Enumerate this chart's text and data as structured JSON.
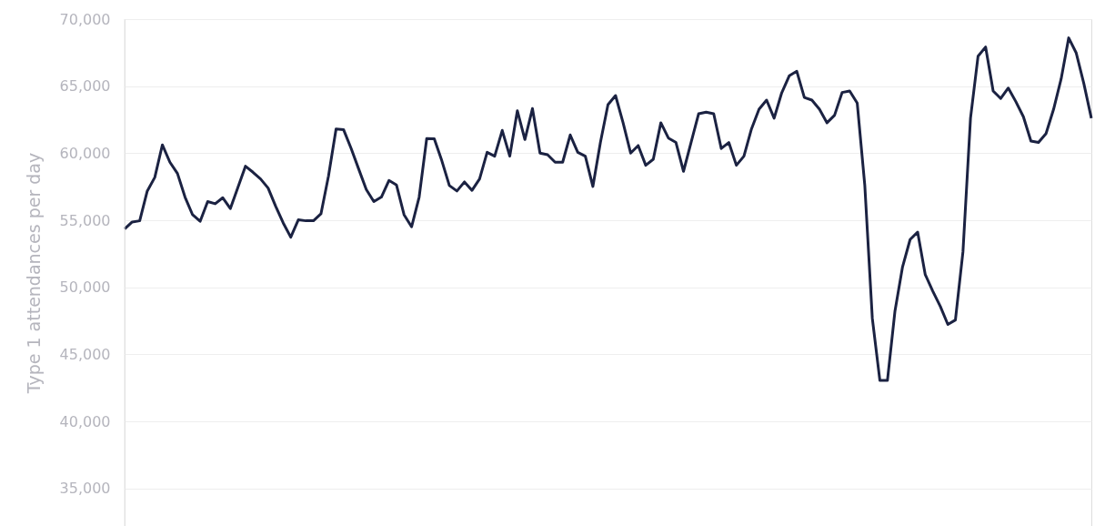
{
  "chart_data": {
    "type": "line",
    "ylabel": "Type 1 attendances per day",
    "categories": [
      null,
      null,
      null,
      null,
      null,
      null,
      null,
      null,
      null,
      null,
      null,
      null,
      null,
      null,
      null,
      null,
      null,
      null,
      null,
      null,
      null,
      null,
      null,
      null,
      null,
      null,
      null,
      null,
      null,
      null,
      null,
      null,
      null,
      null,
      null,
      null,
      null,
      null,
      null,
      null,
      null,
      null,
      null,
      null,
      null,
      null,
      null,
      null,
      null,
      null,
      null,
      null,
      null,
      null,
      null,
      null,
      null,
      null,
      null,
      null,
      null,
      null,
      null,
      null,
      null,
      null,
      null,
      null,
      null,
      null,
      null,
      null,
      null,
      null,
      null,
      null,
      null,
      null,
      null,
      null,
      null,
      null,
      null,
      null,
      null,
      null,
      null,
      null,
      null,
      null,
      null,
      null,
      null,
      null,
      null,
      null,
      null,
      null,
      null,
      null,
      null,
      null,
      null,
      null,
      null,
      null,
      null,
      null,
      null,
      null,
      null,
      null,
      null,
      null,
      null,
      null,
      null,
      null,
      null,
      null,
      null,
      null,
      null,
      null,
      null,
      null,
      null,
      null,
      null
    ],
    "series": [
      {
        "color": "#1b2242",
        "values": [
          54350,
          54870,
          54960,
          57180,
          58200,
          60620,
          59330,
          58490,
          56730,
          55410,
          54920,
          56390,
          56230,
          56680,
          55870,
          57450,
          59030,
          58580,
          58080,
          57400,
          56050,
          54800,
          53740,
          55030,
          54960,
          54960,
          55480,
          58310,
          61810,
          61750,
          60350,
          58810,
          57290,
          56390,
          56730,
          57970,
          57630,
          55410,
          54510,
          56730,
          61090,
          61070,
          59440,
          57590,
          57180,
          57860,
          57230,
          58080,
          60070,
          59780,
          61700,
          59780,
          63170,
          61020,
          63330,
          60010,
          59890,
          59330,
          59330,
          61360,
          60070,
          59780,
          57520,
          60800,
          63620,
          64300,
          62270,
          60010,
          60570,
          59100,
          59550,
          62270,
          61130,
          60800,
          58650,
          60800,
          62940,
          63060,
          62940,
          60350,
          60800,
          59100,
          59780,
          61810,
          63280,
          63960,
          62610,
          64500,
          65770,
          66110,
          64160,
          63960,
          63280,
          62270,
          62830,
          64530,
          64640,
          63740,
          57630,
          47680,
          43050,
          43050,
          48240,
          51520,
          53560,
          54120,
          50960,
          49720,
          48580,
          47230,
          47560,
          52650,
          62610,
          67240,
          67920,
          64640,
          64080,
          64860,
          63850,
          62720,
          60910,
          60800,
          61470,
          63280,
          65540,
          68600,
          67470,
          65210,
          62610
        ]
      }
    ],
    "ylim": [
      32200,
      70000
    ],
    "yticks": [
      {
        "value": 35000,
        "label": "35,000"
      },
      {
        "value": 40000,
        "label": "40,000"
      },
      {
        "value": 45000,
        "label": "45,000"
      },
      {
        "value": 50000,
        "label": "50,000"
      },
      {
        "value": 55000,
        "label": "55,000"
      },
      {
        "value": 60000,
        "label": "60,000"
      },
      {
        "value": 65000,
        "label": "65,000"
      },
      {
        "value": 70000,
        "label": "70,000"
      }
    ],
    "grid": "y",
    "tick_labels": "y",
    "marker": "none",
    "line_style": "solid"
  }
}
